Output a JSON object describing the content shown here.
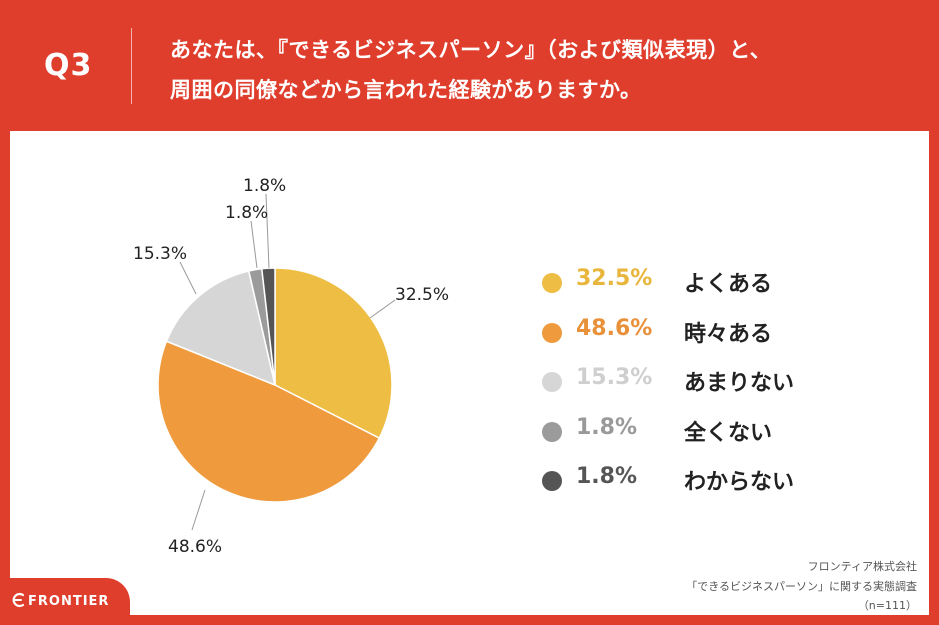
{
  "header": {
    "question_label": "Q3",
    "title_line1": "あなたは、『できるビジネスパーソン』（および類似表現）と、",
    "title_line2": "周囲の同僚などから言われた経験がありますか。"
  },
  "chart_data": {
    "type": "pie",
    "title": "",
    "categories": [
      "よくある",
      "時々ある",
      "あまりない",
      "全くない",
      "わからない"
    ],
    "values": [
      32.5,
      48.6,
      15.3,
      1.8,
      1.8
    ],
    "value_labels": [
      "32.5%",
      "48.6%",
      "15.3%",
      "1.8%",
      "1.8%"
    ],
    "colors": [
      "#eebd44",
      "#ef9a3c",
      "#d6d6d6",
      "#9b9b9b",
      "#555555"
    ],
    "start_angle": "12 o'clock",
    "direction": "clockwise",
    "legend_position": "right"
  },
  "footer": {
    "brand": "FRONTIER",
    "company": "フロンティア株式会社",
    "survey": "「できるビジネスパーソン」に関する実態調査",
    "sample": "（n=111）"
  }
}
